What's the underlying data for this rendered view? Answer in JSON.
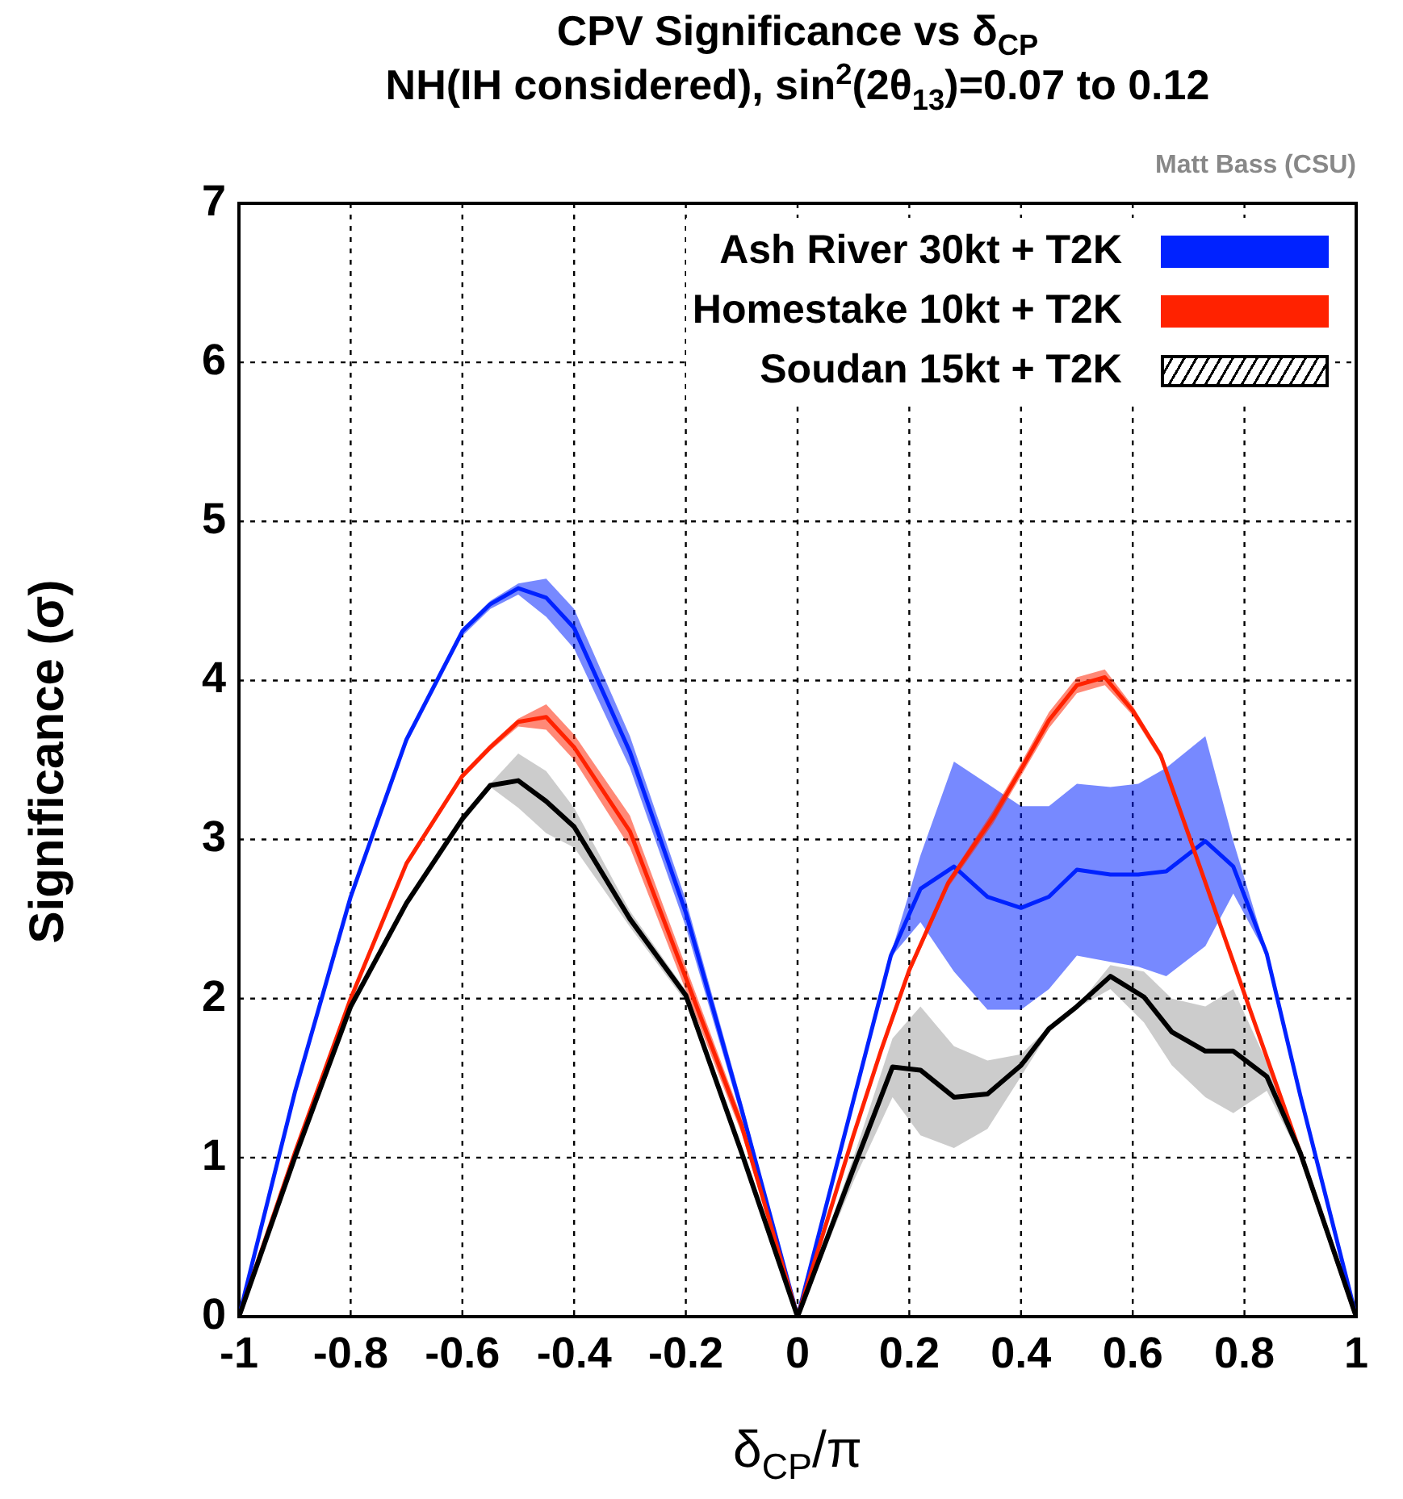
{
  "chart_data": {
    "type": "line",
    "title": "CPV Significance vs δ$_{CP}$",
    "subtitle": "NH(IH considered), sin$^{2}$(2θ$_{13}$)=0.07 to 0.12",
    "xlabel": "δ$_{CP}$/π",
    "ylabel": "Significance (σ)",
    "annotations": [
      "Matt Bass (CSU)"
    ],
    "xlim": [
      -1,
      1
    ],
    "xticks": [
      -1,
      -0.8,
      -0.6,
      -0.4,
      -0.2,
      0,
      0.2,
      0.4,
      0.6,
      0.8,
      1
    ],
    "ylim": [
      0,
      7
    ],
    "yticks": [
      0,
      1,
      2,
      3,
      4,
      5,
      6,
      7
    ],
    "grid": true,
    "legend": "top right",
    "marker": "none",
    "series": [
      {
        "name": "Ash River 30kt + T2K",
        "color": "#0022ff",
        "x": [
          -1,
          -0.9,
          -0.8,
          -0.7,
          -0.6,
          -0.55,
          -0.5,
          -0.45,
          -0.4,
          -0.3,
          -0.2,
          -0.1,
          0,
          0.1,
          0.167,
          0.22,
          0.28,
          0.34,
          0.4,
          0.45,
          0.5,
          0.56,
          0.61,
          0.66,
          0.73,
          0.78,
          0.84,
          0.9,
          1
        ],
        "values": [
          0,
          1.41,
          2.64,
          3.63,
          4.31,
          4.48,
          4.58,
          4.52,
          4.33,
          3.55,
          2.54,
          1.3,
          0,
          1.36,
          2.27,
          2.69,
          2.83,
          2.64,
          2.57,
          2.64,
          2.81,
          2.78,
          2.78,
          2.8,
          2.99,
          2.83,
          2.28,
          1.39,
          0
        ],
        "lower": [
          0,
          1.4,
          2.62,
          3.6,
          4.28,
          4.45,
          4.54,
          4.4,
          4.2,
          3.45,
          2.45,
          1.25,
          0,
          1.35,
          2.26,
          2.48,
          2.17,
          1.93,
          1.93,
          2.06,
          2.27,
          2.23,
          2.2,
          2.14,
          2.33,
          2.66,
          2.27,
          1.38,
          0
        ],
        "upper": [
          0,
          1.42,
          2.66,
          3.65,
          4.33,
          4.5,
          4.61,
          4.64,
          4.45,
          3.65,
          2.62,
          1.35,
          0,
          1.37,
          2.28,
          2.9,
          3.49,
          3.35,
          3.21,
          3.21,
          3.35,
          3.33,
          3.35,
          3.45,
          3.65,
          2.99,
          2.29,
          1.4,
          0
        ]
      },
      {
        "name": "Homestake 10kt + T2K",
        "color": "#ff2200",
        "x": [
          -1,
          -0.9,
          -0.8,
          -0.7,
          -0.6,
          -0.55,
          -0.5,
          -0.45,
          -0.4,
          -0.3,
          -0.2,
          -0.1,
          0,
          0.1,
          0.15,
          0.2,
          0.27,
          0.35,
          0.4,
          0.45,
          0.5,
          0.55,
          0.6,
          0.65,
          0.7,
          0.75,
          0.8,
          0.85,
          0.9,
          1
        ],
        "values": [
          0,
          1.03,
          2,
          2.85,
          3.4,
          3.58,
          3.74,
          3.77,
          3.58,
          3.05,
          2.13,
          1.2,
          0,
          1.14,
          1.68,
          2.18,
          2.73,
          3.14,
          3.44,
          3.75,
          3.97,
          4.02,
          3.81,
          3.53,
          3.03,
          2.53,
          2.03,
          1.53,
          1.03,
          0
        ],
        "lower": [
          0,
          1.02,
          1.98,
          2.83,
          3.38,
          3.56,
          3.71,
          3.69,
          3.5,
          2.95,
          2.05,
          1.15,
          0,
          1.12,
          1.65,
          2.15,
          2.7,
          3.1,
          3.4,
          3.7,
          3.92,
          3.97,
          3.78,
          3.5,
          3.0,
          2.5,
          2.0,
          1.5,
          1.0,
          0
        ],
        "upper": [
          0,
          1.04,
          2.02,
          2.87,
          3.42,
          3.6,
          3.76,
          3.85,
          3.66,
          3.15,
          2.2,
          1.25,
          0,
          1.16,
          1.7,
          2.2,
          2.75,
          3.18,
          3.48,
          3.8,
          4.02,
          4.07,
          3.84,
          3.55,
          3.05,
          2.55,
          2.05,
          1.55,
          1.05,
          0
        ]
      },
      {
        "name": "Soudan 15kt + T2K",
        "color": "#000000",
        "x": [
          -1,
          -0.9,
          -0.8,
          -0.7,
          -0.6,
          -0.55,
          -0.5,
          -0.45,
          -0.4,
          -0.3,
          -0.2,
          -0.1,
          0,
          0.1,
          0.17,
          0.22,
          0.28,
          0.34,
          0.4,
          0.45,
          0.5,
          0.56,
          0.62,
          0.67,
          0.73,
          0.78,
          0.84,
          0.9,
          1
        ],
        "values": [
          0,
          1,
          1.95,
          2.6,
          3.13,
          3.34,
          3.37,
          3.24,
          3.08,
          2.5,
          2.02,
          1.03,
          0,
          0.93,
          1.57,
          1.55,
          1.38,
          1.4,
          1.58,
          1.81,
          1.95,
          2.14,
          2.01,
          1.79,
          1.67,
          1.67,
          1.51,
          1.03,
          0
        ],
        "lower": [
          0,
          0.98,
          1.93,
          2.58,
          3.1,
          3.33,
          3.2,
          3.04,
          2.95,
          2.45,
          1.98,
          1.0,
          0,
          0.85,
          1.38,
          1.14,
          1.06,
          1.18,
          1.51,
          1.79,
          1.94,
          2.06,
          1.85,
          1.58,
          1.38,
          1.28,
          1.42,
          1.0,
          0
        ],
        "upper": [
          0,
          1.02,
          1.97,
          2.62,
          3.15,
          3.35,
          3.54,
          3.43,
          3.2,
          2.55,
          2.05,
          1.05,
          0,
          1.0,
          1.75,
          1.95,
          1.7,
          1.61,
          1.65,
          1.82,
          1.95,
          2.21,
          2.17,
          2.0,
          1.95,
          2.06,
          1.6,
          1.05,
          0
        ]
      }
    ]
  }
}
